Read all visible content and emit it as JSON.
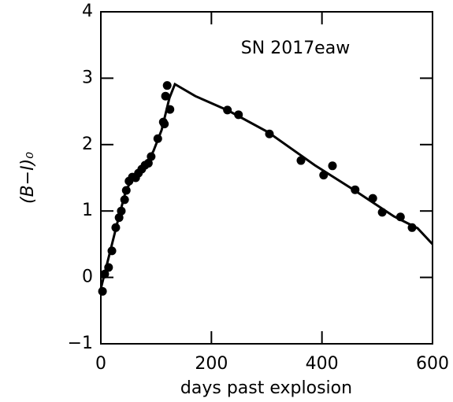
{
  "chart_data": {
    "type": "scatter",
    "title": "SN 2017eaw",
    "x_label": "days past explosion",
    "y_label": "(B−I)₀",
    "xlim": [
      0,
      600
    ],
    "ylim": [
      -1,
      4
    ],
    "xticks": [
      0,
      200,
      400,
      600
    ],
    "yticks": [
      {
        "value": -1,
        "label": "−1"
      },
      0,
      1,
      2,
      3,
      4
    ],
    "color": "#000000",
    "x": [
      3,
      7,
      14,
      20,
      27,
      33,
      37,
      43,
      46,
      51,
      57,
      63,
      68,
      74,
      80,
      86,
      91,
      103,
      113,
      115,
      117,
      120,
      125,
      229,
      249,
      305,
      362,
      403,
      419,
      460,
      492,
      509,
      542,
      563
    ],
    "values": [
      -0.21,
      0.05,
      0.15,
      0.4,
      0.75,
      0.9,
      1.0,
      1.17,
      1.31,
      1.45,
      1.51,
      1.5,
      1.57,
      1.63,
      1.69,
      1.72,
      1.82,
      2.09,
      2.34,
      2.31,
      2.73,
      2.89,
      2.53,
      2.52,
      2.45,
      2.16,
      1.76,
      1.54,
      1.68,
      1.32,
      1.19,
      0.98,
      0.91,
      0.75
    ],
    "fit": {
      "x": [
        0,
        6,
        31,
        46,
        60,
        81,
        95,
        110,
        124,
        134,
        171,
        231,
        302,
        387,
        459,
        530,
        573,
        600
      ],
      "values": [
        -0.17,
        0.03,
        0.86,
        1.33,
        1.5,
        1.69,
        1.9,
        2.22,
        2.7,
        2.91,
        2.73,
        2.51,
        2.19,
        1.69,
        1.31,
        0.92,
        0.74,
        0.5
      ]
    }
  }
}
